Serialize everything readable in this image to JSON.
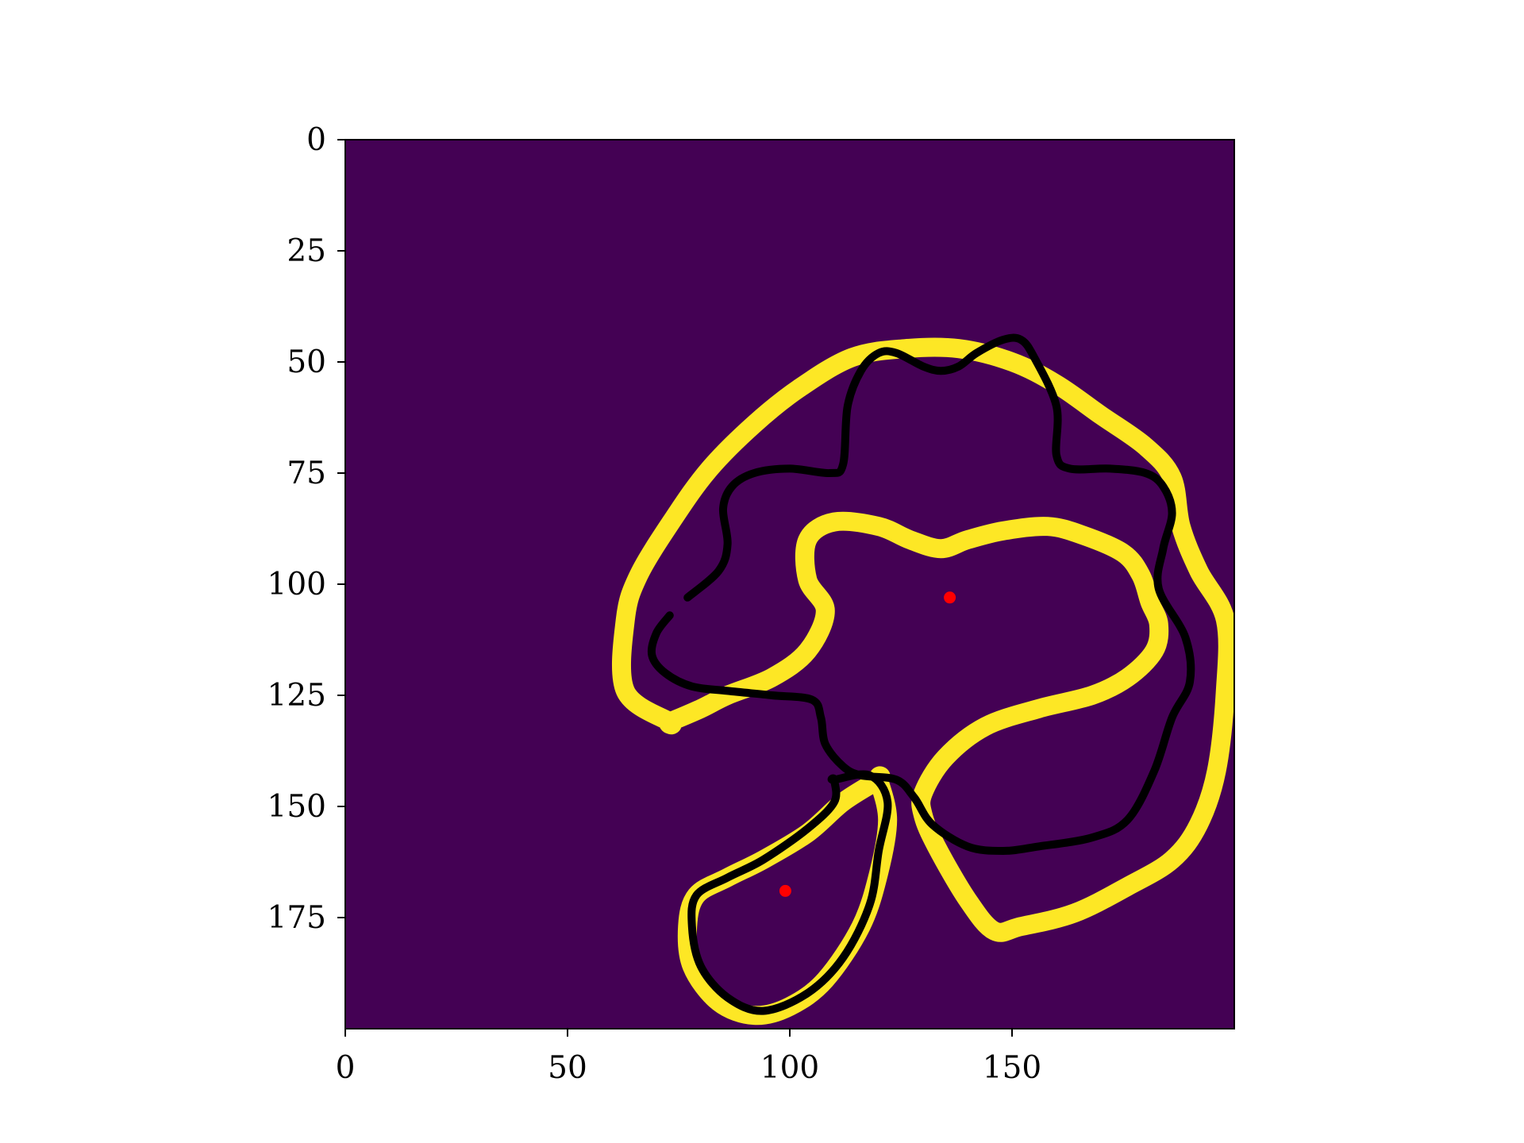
{
  "chart_data": {
    "type": "heatmap",
    "title": "",
    "xlabel": "",
    "ylabel": "",
    "xlim": [
      0,
      200
    ],
    "ylim": [
      200,
      0
    ],
    "y_axis_inverted": true,
    "grid": false,
    "legend": "none",
    "colors": {
      "background": "#440154",
      "highlight": "#fde725",
      "contour": "#000000",
      "centroid": "#ff0000"
    },
    "x_ticks": [
      {
        "value": 0,
        "label": "0"
      },
      {
        "value": 50,
        "label": "50"
      },
      {
        "value": 100,
        "label": "100"
      },
      {
        "value": 150,
        "label": "150"
      }
    ],
    "y_ticks": [
      {
        "value": 0,
        "label": "0"
      },
      {
        "value": 25,
        "label": "25"
      },
      {
        "value": 50,
        "label": "50"
      },
      {
        "value": 75,
        "label": "75"
      },
      {
        "value": 100,
        "label": "100"
      },
      {
        "value": 125,
        "label": "125"
      },
      {
        "value": 150,
        "label": "150"
      },
      {
        "value": 175,
        "label": "175"
      }
    ],
    "yellow_bands": [
      {
        "name": "outer-ring",
        "points": [
          [
            73,
            131
          ],
          [
            63,
            124
          ],
          [
            63,
            108
          ],
          [
            66,
            98
          ],
          [
            74,
            85
          ],
          [
            82,
            74
          ],
          [
            92,
            64
          ],
          [
            102,
            56
          ],
          [
            114,
            49
          ],
          [
            126,
            47
          ],
          [
            138,
            47
          ],
          [
            150,
            50
          ],
          [
            160,
            55
          ],
          [
            170,
            62
          ],
          [
            180,
            69
          ],
          [
            186,
            76
          ],
          [
            188,
            87
          ],
          [
            192,
            97
          ],
          [
            198,
            108
          ],
          [
            198,
            124
          ],
          [
            196,
            142
          ],
          [
            192,
            154
          ],
          [
            186,
            162
          ],
          [
            176,
            168
          ],
          [
            164,
            174
          ],
          [
            152,
            177
          ],
          [
            146,
            178
          ],
          [
            140,
            171
          ],
          [
            133,
            159
          ],
          [
            130,
            152
          ],
          [
            130,
            147
          ],
          [
            135,
            139
          ],
          [
            144,
            132
          ],
          [
            156,
            128
          ],
          [
            168,
            125
          ],
          [
            176,
            121
          ],
          [
            182,
            115
          ],
          [
            183,
            109
          ],
          [
            181,
            104
          ],
          [
            179,
            98
          ],
          [
            175,
            93
          ],
          [
            166,
            89
          ],
          [
            158,
            87
          ],
          [
            148,
            88
          ],
          [
            140,
            90
          ],
          [
            134,
            92
          ],
          [
            127,
            90
          ],
          [
            120,
            87
          ],
          [
            110,
            86
          ],
          [
            104,
            90
          ],
          [
            104,
            99
          ],
          [
            108,
            106
          ],
          [
            104,
            115
          ],
          [
            96,
            121
          ],
          [
            86,
            125
          ],
          [
            80,
            128
          ],
          [
            73,
            131
          ]
        ]
      },
      {
        "name": "lower-ring",
        "points": [
          [
            120,
            144
          ],
          [
            122,
            153
          ],
          [
            120,
            165
          ],
          [
            116,
            177
          ],
          [
            108,
            189
          ],
          [
            100,
            195
          ],
          [
            92,
            197
          ],
          [
            84,
            194
          ],
          [
            78,
            186
          ],
          [
            77,
            177
          ],
          [
            79,
            170
          ],
          [
            86,
            166
          ],
          [
            94,
            162
          ],
          [
            104,
            156
          ],
          [
            112,
            149
          ],
          [
            120,
            144
          ]
        ]
      }
    ],
    "black_contours": [
      {
        "name": "upper-contour",
        "points": [
          [
            77,
            103
          ],
          [
            84,
            97
          ],
          [
            86,
            91
          ],
          [
            85,
            83
          ],
          [
            87,
            78
          ],
          [
            92,
            75
          ],
          [
            100,
            74
          ],
          [
            109,
            75
          ],
          [
            112,
            73
          ],
          [
            113,
            60
          ],
          [
            116,
            52
          ],
          [
            120,
            48
          ],
          [
            124,
            48
          ],
          [
            130,
            51
          ],
          [
            134,
            52
          ],
          [
            138,
            51
          ],
          [
            142,
            48
          ],
          [
            148,
            45
          ],
          [
            152,
            45
          ],
          [
            155,
            49
          ],
          [
            160,
            60
          ],
          [
            160,
            71
          ],
          [
            163,
            74
          ],
          [
            172,
            74
          ],
          [
            180,
            75
          ],
          [
            184,
            78
          ],
          [
            186,
            84
          ],
          [
            184,
            92
          ],
          [
            183,
            101
          ],
          [
            189,
            112
          ],
          [
            190,
            122
          ],
          [
            186,
            130
          ],
          [
            182,
            142
          ],
          [
            176,
            153
          ],
          [
            168,
            157
          ],
          [
            156,
            159
          ],
          [
            148,
            160
          ],
          [
            140,
            159
          ],
          [
            132,
            154
          ],
          [
            128,
            148
          ],
          [
            124,
            144
          ],
          [
            116,
            143
          ],
          [
            112,
            141
          ],
          [
            108,
            136
          ],
          [
            107,
            130
          ],
          [
            105,
            126
          ],
          [
            96,
            125
          ],
          [
            86,
            124
          ],
          [
            78,
            123
          ],
          [
            72,
            120
          ],
          [
            69,
            116
          ],
          [
            70,
            111
          ],
          [
            73,
            107
          ]
        ]
      },
      {
        "name": "lower-contour",
        "points": [
          [
            110,
            144
          ],
          [
            118,
            143
          ],
          [
            122,
            149
          ],
          [
            120,
            160
          ],
          [
            118,
            172
          ],
          [
            112,
            184
          ],
          [
            104,
            192
          ],
          [
            94,
            196
          ],
          [
            86,
            193
          ],
          [
            80,
            186
          ],
          [
            78,
            177
          ],
          [
            79,
            170
          ],
          [
            86,
            166
          ],
          [
            94,
            162
          ],
          [
            104,
            155
          ],
          [
            110,
            149
          ],
          [
            110,
            144
          ]
        ]
      }
    ],
    "centroids": [
      {
        "x": 136,
        "y": 103
      },
      {
        "x": 99,
        "y": 169
      }
    ]
  }
}
